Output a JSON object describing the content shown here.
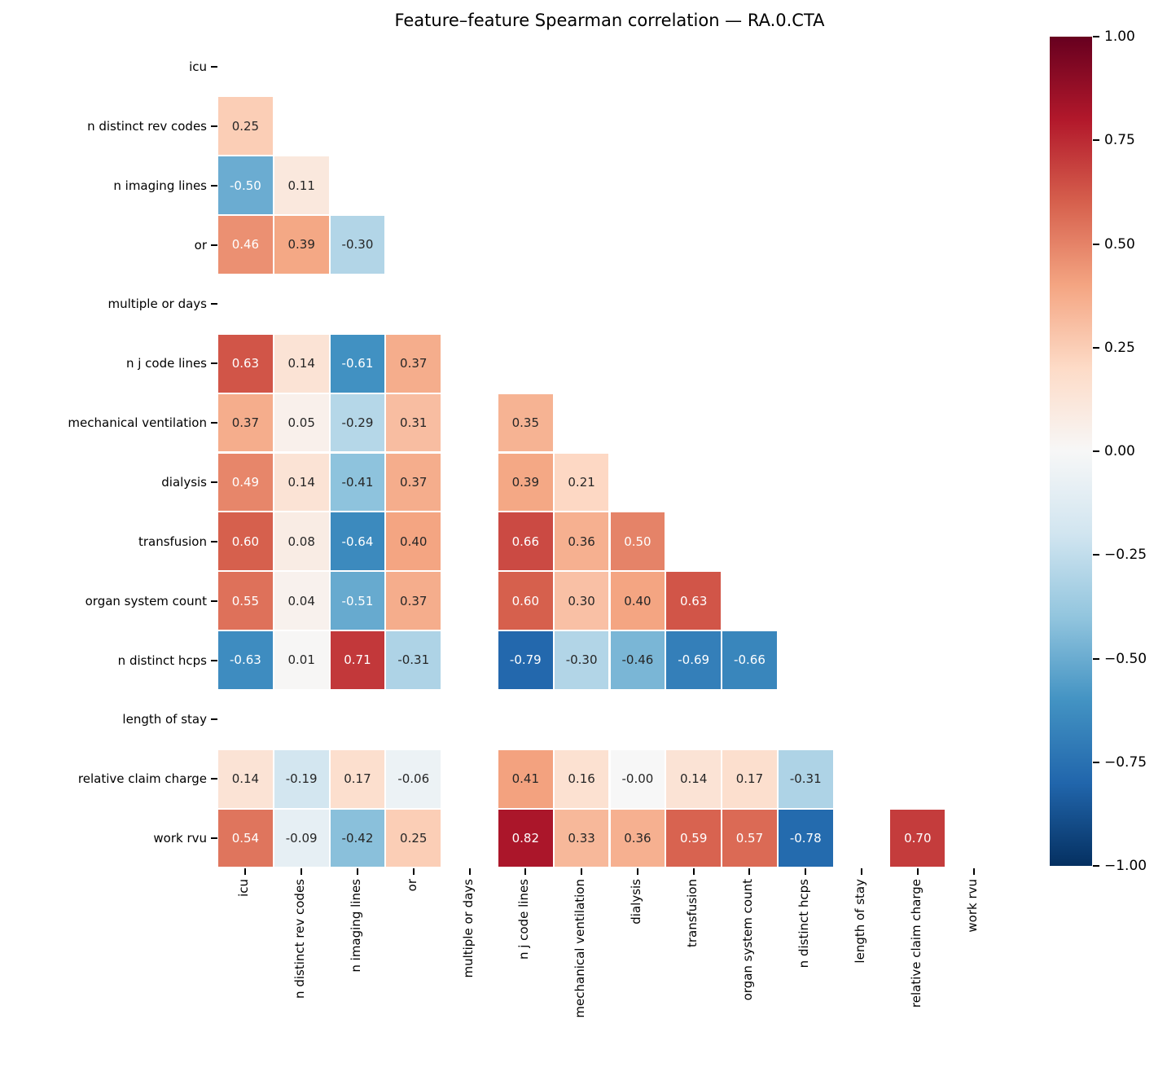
{
  "chart_data": {
    "type": "heatmap",
    "title": "Feature–feature Spearman correlation — RA.0.CTA",
    "features": [
      "icu",
      "n distinct rev codes",
      "n imaging lines",
      "or",
      "multiple or days",
      "n j code lines",
      "mechanical ventilation",
      "dialysis",
      "transfusion",
      "organ system count",
      "n distinct hcps",
      "length of stay",
      "relative claim charge",
      "work rvu"
    ],
    "matrix": [
      [
        null,
        null,
        null,
        null,
        null,
        null,
        null,
        null,
        null,
        null,
        null,
        null,
        null,
        null
      ],
      [
        "0.25",
        null,
        null,
        null,
        null,
        null,
        null,
        null,
        null,
        null,
        null,
        null,
        null,
        null
      ],
      [
        "-0.50",
        "0.11",
        null,
        null,
        null,
        null,
        null,
        null,
        null,
        null,
        null,
        null,
        null,
        null
      ],
      [
        "0.46",
        "0.39",
        "-0.30",
        null,
        null,
        null,
        null,
        null,
        null,
        null,
        null,
        null,
        null,
        null
      ],
      [
        null,
        null,
        null,
        null,
        null,
        null,
        null,
        null,
        null,
        null,
        null,
        null,
        null,
        null
      ],
      [
        "0.63",
        "0.14",
        "-0.61",
        "0.37",
        null,
        null,
        null,
        null,
        null,
        null,
        null,
        null,
        null,
        null
      ],
      [
        "0.37",
        "0.05",
        "-0.29",
        "0.31",
        null,
        "0.35",
        null,
        null,
        null,
        null,
        null,
        null,
        null,
        null
      ],
      [
        "0.49",
        "0.14",
        "-0.41",
        "0.37",
        null,
        "0.39",
        "0.21",
        null,
        null,
        null,
        null,
        null,
        null,
        null
      ],
      [
        "0.60",
        "0.08",
        "-0.64",
        "0.40",
        null,
        "0.66",
        "0.36",
        "0.50",
        null,
        null,
        null,
        null,
        null,
        null
      ],
      [
        "0.55",
        "0.04",
        "-0.51",
        "0.37",
        null,
        "0.60",
        "0.30",
        "0.40",
        "0.63",
        null,
        null,
        null,
        null,
        null
      ],
      [
        "-0.63",
        "0.01",
        "0.71",
        "-0.31",
        null,
        "-0.79",
        "-0.30",
        "-0.46",
        "-0.69",
        "-0.66",
        null,
        null,
        null,
        null
      ],
      [
        null,
        null,
        null,
        null,
        null,
        null,
        null,
        null,
        null,
        null,
        null,
        null,
        null,
        null
      ],
      [
        "0.14",
        "-0.19",
        "0.17",
        "-0.06",
        null,
        "0.41",
        "0.16",
        "-0.00",
        "0.14",
        "0.17",
        "-0.31",
        null,
        null,
        null
      ],
      [
        "0.54",
        "-0.09",
        "-0.42",
        "0.25",
        null,
        "0.82",
        "0.33",
        "0.36",
        "0.59",
        "0.57",
        "-0.78",
        null,
        "0.70",
        null
      ]
    ],
    "vmin": -1,
    "vmax": 1,
    "colormap": "RdBu_r",
    "colormap_stops": [
      "#053061",
      "#2166ac",
      "#4393c3",
      "#92c5de",
      "#d1e5f0",
      "#f7f7f7",
      "#fddbc7",
      "#f4a582",
      "#d6604d",
      "#b2182b",
      "#67001f"
    ],
    "colorbar_ticks": [
      "1.00",
      "0.75",
      "0.50",
      "0.25",
      "0.00",
      "−0.25",
      "−0.50",
      "−0.75",
      "−1.00"
    ],
    "annotation_text_colors": {
      "dark": "#262626",
      "light": "#ffffff"
    },
    "legend_position": "right colorbar"
  }
}
